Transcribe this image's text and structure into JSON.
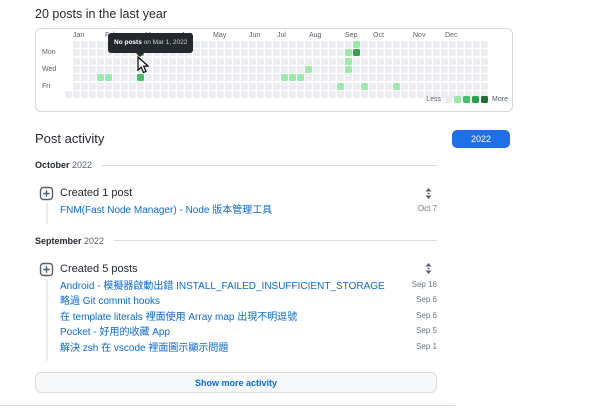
{
  "header": {
    "title": "20 posts in the last year"
  },
  "contribution_graph": {
    "months": [
      "Jan",
      "Feb",
      "Mar",
      "Apr",
      "May",
      "Jun",
      "Jul",
      "Aug",
      "Sep",
      "Oct",
      "Nov",
      "Dec"
    ],
    "day_labels": [
      "Mon",
      "Wed",
      "Fri"
    ],
    "weeks": 53,
    "levels": {
      "0": "#ebedf0",
      "1": "#9be9a8",
      "2": "#40c463",
      "3": "#30a14e",
      "4": "#216e39"
    },
    "cells": [
      {
        "col": 4,
        "row": 4,
        "level": 1
      },
      {
        "col": 5,
        "row": 4,
        "level": 1
      },
      {
        "col": 9,
        "row": 1,
        "level": 2
      },
      {
        "col": 9,
        "row": 4,
        "level": 2
      },
      {
        "col": 27,
        "row": 4,
        "level": 1
      },
      {
        "col": 28,
        "row": 4,
        "level": 1
      },
      {
        "col": 29,
        "row": 4,
        "level": 1
      },
      {
        "col": 30,
        "row": 3,
        "level": 1
      },
      {
        "col": 34,
        "row": 5,
        "level": 1
      },
      {
        "col": 35,
        "row": 1,
        "level": 1
      },
      {
        "col": 35,
        "row": 2,
        "level": 1
      },
      {
        "col": 35,
        "row": 3,
        "level": 1
      },
      {
        "col": 36,
        "row": 0,
        "level": 1
      },
      {
        "col": 36,
        "row": 1,
        "level": 3
      },
      {
        "col": 37,
        "row": 5,
        "level": 1
      },
      {
        "col": 41,
        "row": 5,
        "level": 1
      }
    ],
    "tooltip": {
      "bold": "No posts",
      "rest": " on Mar 1, 2022"
    },
    "legend": {
      "less": "Less",
      "more": "More"
    }
  },
  "activity": {
    "title": "Post activity",
    "year_button": "2022",
    "sections": [
      {
        "month": "October",
        "year": "2022",
        "summary": "Created 1 post",
        "posts": [
          {
            "title": "FNM(Fast Node Manager) - Node 版本管理工具",
            "date": "Oct 7"
          }
        ]
      },
      {
        "month": "September",
        "year": "2022",
        "summary": "Created 5 posts",
        "posts": [
          {
            "title": "Android - 模擬器啟動出錯 INSTALL_FAILED_INSUFFICIENT_STORAGE",
            "date": "Sep 16"
          },
          {
            "title": "略過 Git commit hooks",
            "date": "Sep 6"
          },
          {
            "title": "在 template literals 裡面使用 Array map 出現不明逗號",
            "date": "Sep 6"
          },
          {
            "title": "Pocket - 好用的收藏 App",
            "date": "Sep 5"
          },
          {
            "title": "解決 zsh 在 vscode 裡面圖示顯示問題",
            "date": "Sep 1"
          }
        ]
      }
    ],
    "show_more_label": "Show more activity"
  }
}
